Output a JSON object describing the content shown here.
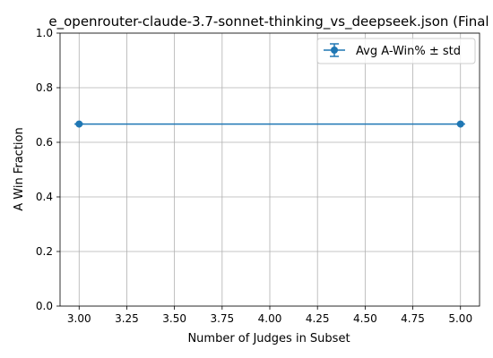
{
  "chart_data": {
    "type": "line",
    "title": "e_openrouter-claude-3.7-sonnet-thinking_vs_deepseek.json (Final",
    "xlabel": "Number of Judges in Subset",
    "ylabel": "A Win Fraction",
    "xlim": [
      2.9,
      5.1
    ],
    "ylim": [
      0.0,
      1.0
    ],
    "xticks": [
      3.0,
      3.25,
      3.5,
      3.75,
      4.0,
      4.25,
      4.5,
      4.75,
      5.0
    ],
    "xtick_labels": [
      "3.00",
      "3.25",
      "3.50",
      "3.75",
      "4.00",
      "4.25",
      "4.50",
      "4.75",
      "5.00"
    ],
    "yticks": [
      0.0,
      0.2,
      0.4,
      0.6,
      0.8,
      1.0
    ],
    "ytick_labels": [
      "0.0",
      "0.2",
      "0.4",
      "0.6",
      "0.8",
      "1.0"
    ],
    "grid": true,
    "legend_position": "top-right",
    "series": [
      {
        "name": "Avg A-Win% ± std",
        "color": "#1f77b4",
        "marker": "circle",
        "x": [
          3,
          5
        ],
        "y": [
          0.667,
          0.667
        ],
        "std": [
          0,
          0
        ]
      }
    ]
  }
}
